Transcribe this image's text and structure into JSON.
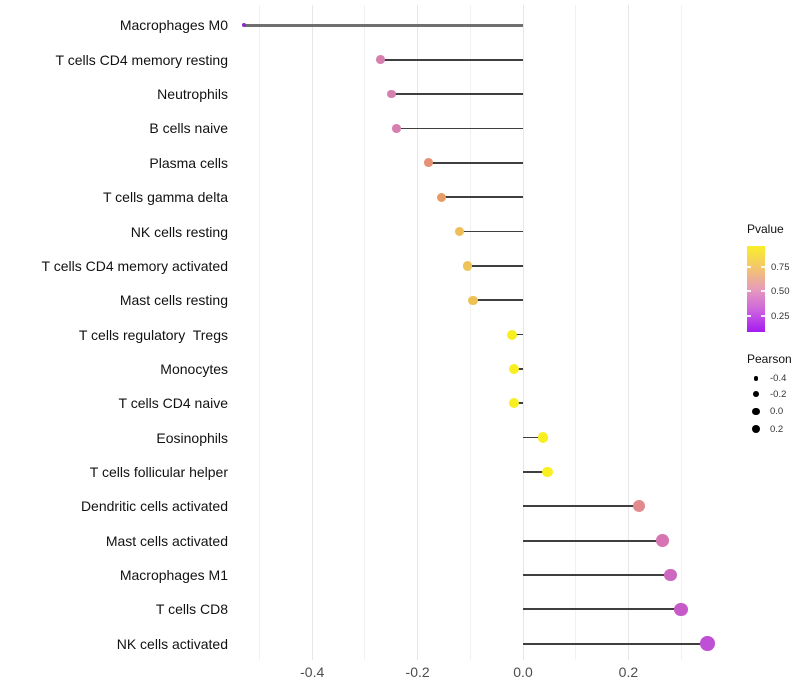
{
  "chart_data": {
    "type": "lollipop",
    "orientation": "horizontal",
    "title": "",
    "xlabel": "",
    "ylabel": "",
    "xlim": [
      -0.57,
      0.4
    ],
    "x_ticks": [
      {
        "value": -0.4,
        "label": "-0.4"
      },
      {
        "value": -0.2,
        "label": "-0.2"
      },
      {
        "value": 0.0,
        "label": "0.0"
      },
      {
        "value": 0.2,
        "label": "0.2"
      }
    ],
    "gridlines": {
      "major": [
        -0.4,
        -0.2,
        0.0,
        0.2
      ],
      "minor": [
        -0.5,
        -0.3,
        -0.1,
        0.1,
        0.3
      ]
    },
    "grid": true,
    "points": [
      {
        "label": "Macrophages M0",
        "pearson": -0.53,
        "color": "#8e2bd3",
        "radius": 2.1,
        "line_color": "#6f6f6f",
        "line_width": 2.4
      },
      {
        "label": "T cells CD4 memory resting",
        "pearson": -0.27,
        "color": "#d77fae",
        "radius": 4.4,
        "line_color": "#3f3f3f",
        "line_width": 1.8
      },
      {
        "label": "Neutrophils",
        "pearson": -0.25,
        "color": "#d680b0",
        "radius": 4.4,
        "line_color": "#3f3f3f",
        "line_width": 1.8
      },
      {
        "label": "B cells naive",
        "pearson": -0.24,
        "color": "#d680b0",
        "radius": 4.4,
        "line_color": "#3f3f3f",
        "line_width": 1.8
      },
      {
        "label": "Plasma cells",
        "pearson": -0.18,
        "color": "#e69176",
        "radius": 4.4,
        "line_color": "#3f3f3f",
        "line_width": 1.8
      },
      {
        "label": "T cells gamma delta",
        "pearson": -0.155,
        "color": "#e89c65",
        "radius": 4.5,
        "line_color": "#3f3f3f",
        "line_width": 1.8
      },
      {
        "label": "NK cells resting",
        "pearson": -0.12,
        "color": "#efbe59",
        "radius": 4.6,
        "line_color": "#3f3f3f",
        "line_width": 1.8
      },
      {
        "label": "T cells CD4 memory activated",
        "pearson": -0.105,
        "color": "#eec45a",
        "radius": 4.7,
        "line_color": "#3f3f3f",
        "line_width": 1.8
      },
      {
        "label": "Mast cells resting",
        "pearson": -0.095,
        "color": "#edc254",
        "radius": 4.7,
        "line_color": "#3f3f3f",
        "line_width": 1.8
      },
      {
        "label": "T cells regulatory  Tregs",
        "pearson": -0.021,
        "color": "#f8ee20",
        "radius": 5.0,
        "line_color": "#3f3f3f",
        "line_width": 1.8
      },
      {
        "label": "Monocytes",
        "pearson": -0.018,
        "color": "#f8ee20",
        "radius": 5.0,
        "line_color": "#3f3f3f",
        "line_width": 1.8
      },
      {
        "label": "T cells CD4 naive",
        "pearson": -0.018,
        "color": "#f8ee20",
        "radius": 5.0,
        "line_color": "#3f3f3f",
        "line_width": 1.8
      },
      {
        "label": "Eosinophils",
        "pearson": 0.038,
        "color": "#f8ee20",
        "radius": 5.2,
        "line_color": "#3f3f3f",
        "line_width": 1.8
      },
      {
        "label": "T cells follicular helper",
        "pearson": 0.047,
        "color": "#f8ee20",
        "radius": 5.3,
        "line_color": "#3f3f3f",
        "line_width": 1.8
      },
      {
        "label": "Dendritic cells activated",
        "pearson": 0.22,
        "color": "#e2898e",
        "radius": 5.9,
        "line_color": "#3f3f3f",
        "line_width": 1.8
      },
      {
        "label": "Mast cells activated",
        "pearson": 0.265,
        "color": "#d675b2",
        "radius": 6.3,
        "line_color": "#3f3f3f",
        "line_width": 1.8
      },
      {
        "label": "Macrophages M1",
        "pearson": 0.28,
        "color": "#cc68c0",
        "radius": 6.4,
        "line_color": "#3f3f3f",
        "line_width": 1.8
      },
      {
        "label": "T cells CD8",
        "pearson": 0.3,
        "color": "#c65ac9",
        "radius": 6.8,
        "line_color": "#3f3f3f",
        "line_width": 1.8
      },
      {
        "label": "NK cells activated",
        "pearson": 0.35,
        "color": "#bf4fd4",
        "radius": 7.4,
        "line_color": "#3f3f3f",
        "line_width": 1.8
      }
    ],
    "legend": {
      "position": "right",
      "pvalue": {
        "title": "Pvalue",
        "gradient_top_to_bottom": [
          "#f9ee28",
          "#f4c66c",
          "#e79cba",
          "#cc63de",
          "#a41bf0"
        ],
        "ticks": [
          {
            "label": "0.75",
            "pos": 0.245
          },
          {
            "label": "0.50",
            "pos": 0.525
          },
          {
            "label": "0.25",
            "pos": 0.815
          }
        ]
      },
      "pearson": {
        "title": "Pearson",
        "items": [
          {
            "label": "-0.4",
            "radius": 2.3
          },
          {
            "label": "-0.2",
            "radius": 2.9
          },
          {
            "label": "0.0",
            "radius": 3.7
          },
          {
            "label": "0.2",
            "radius": 4.4
          }
        ]
      }
    }
  }
}
